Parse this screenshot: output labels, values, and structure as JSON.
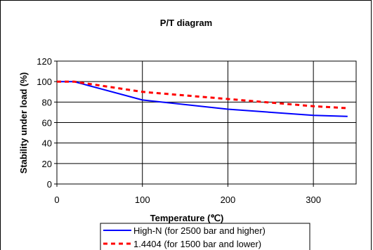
{
  "chart_data": {
    "type": "line",
    "title": "P/T diagram",
    "xlabel": "Temperature (℃)",
    "ylabel": "Stability under load (%)",
    "xlim": [
      0,
      350
    ],
    "ylim": [
      0,
      120
    ],
    "x_ticks": [
      "0",
      "100",
      "200",
      "300"
    ],
    "y_ticks": [
      "0",
      "20",
      "40",
      "60",
      "80",
      "100",
      "120"
    ],
    "grid": "horizontal and vertical",
    "legend_position": "bottom",
    "series": [
      {
        "name": "High-N (for 2500 bar and higher)",
        "color": "#0000ff",
        "style": "solid",
        "x": [
          0,
          20,
          100,
          200,
          300,
          340
        ],
        "y": [
          100,
          100,
          82,
          73,
          67,
          66
        ]
      },
      {
        "name": "1.4404 (for 1500 bar and lower)",
        "color": "#ff0000",
        "style": "dashed",
        "x": [
          0,
          20,
          100,
          200,
          300,
          340
        ],
        "y": [
          100,
          100,
          90,
          83,
          76,
          74
        ]
      }
    ]
  }
}
